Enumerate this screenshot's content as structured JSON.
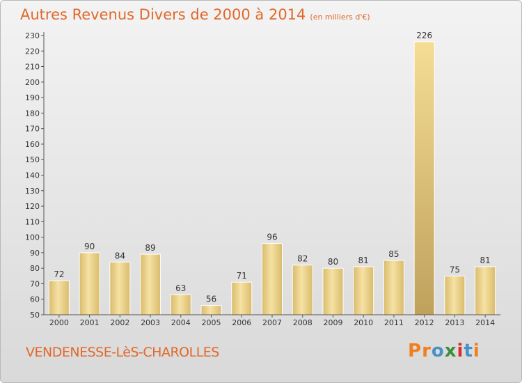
{
  "header": {
    "title": "Autres Revenus Divers de 2000 à 2014",
    "unit": "(en milliers d'€)"
  },
  "footer": {
    "place": "VENDENESSE-LèS-CHAROLLES"
  },
  "logo": {
    "text": "Proxiti",
    "letters": [
      "P",
      "r",
      "o",
      "x",
      "i",
      "t",
      "i"
    ],
    "colors": [
      "#f07f1f",
      "#f07f1f",
      "#4a90c8",
      "#3b8f3a",
      "#d92c2c",
      "#4a90c8",
      "#f07f1f"
    ]
  },
  "colors": {
    "title": "#e0682a",
    "bar_light": "#f6e2a4",
    "bar_dark": "#d9bb6c",
    "axis": "#555555"
  },
  "chart_data": {
    "type": "bar",
    "categories": [
      "2000",
      "2001",
      "2002",
      "2003",
      "2004",
      "2005",
      "2006",
      "2007",
      "2008",
      "2009",
      "2010",
      "2011",
      "2012",
      "2013",
      "2014"
    ],
    "values": [
      72,
      90,
      84,
      89,
      63,
      56,
      71,
      96,
      82,
      80,
      81,
      85,
      226,
      75,
      81
    ],
    "ylim": [
      50,
      230
    ],
    "yticks": [
      50,
      60,
      70,
      80,
      90,
      100,
      110,
      120,
      130,
      140,
      150,
      160,
      170,
      180,
      190,
      200,
      210,
      220,
      230
    ],
    "grid": false,
    "legend": "none"
  }
}
